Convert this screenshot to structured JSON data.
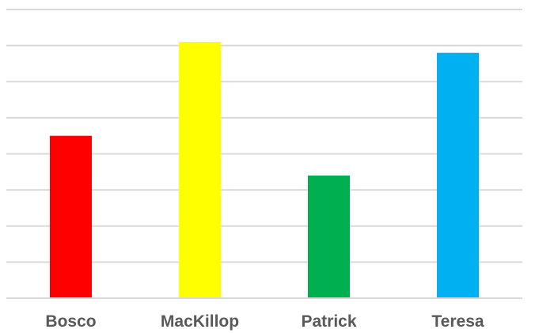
{
  "chart_data": {
    "type": "bar",
    "categories": [
      "Bosco",
      "MacKillop",
      "Patrick",
      "Teresa"
    ],
    "values": [
      4.5,
      7.1,
      3.4,
      6.8
    ],
    "colors": [
      "#ff0000",
      "#ffff00",
      "#00b050",
      "#00b0f0"
    ],
    "ylim": [
      0,
      8
    ],
    "grid": true,
    "title": "",
    "xlabel": "",
    "ylabel": ""
  }
}
